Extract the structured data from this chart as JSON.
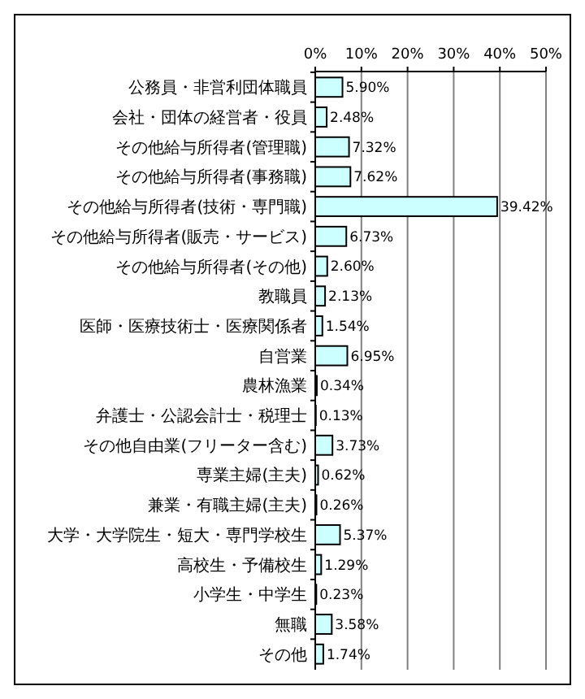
{
  "chart_data": {
    "type": "bar",
    "orientation": "horizontal",
    "grid": "x",
    "categories": [
      "公務員・非営利団体職員",
      "会社・団体の経営者・役員",
      "その他給与所得者(管理職)",
      "その他給与所得者(事務職)",
      "その他給与所得者(技術・専門職)",
      "その他給与所得者(販売・サービス)",
      "その他給与所得者(その他)",
      "教職員",
      "医師・医療技術士・医療関係者",
      "自営業",
      "農林漁業",
      "弁護士・公認会計士・税理士",
      "その他自由業(フリーター含む)",
      "専業主婦(主夫)",
      "兼業・有職主婦(主夫)",
      "大学・大学院生・短大・専門学校生",
      "高校生・予備校生",
      "小学生・中学生",
      "無職",
      "その他"
    ],
    "values": [
      5.9,
      2.48,
      7.32,
      7.62,
      39.42,
      6.73,
      2.6,
      2.13,
      1.54,
      6.95,
      0.34,
      0.13,
      3.73,
      0.62,
      0.26,
      5.37,
      1.29,
      0.23,
      3.58,
      1.74
    ],
    "value_labels": [
      "5.90%",
      "2.48%",
      "7.32%",
      "7.62%",
      "39.42%",
      "6.73%",
      "2.60%",
      "2.13%",
      "1.54%",
      "6.95%",
      "0.34%",
      "0.13%",
      "3.73%",
      "0.62%",
      "0.26%",
      "5.37%",
      "1.29%",
      "0.23%",
      "3.58%",
      "1.74%"
    ],
    "color": "#ccffff",
    "xlim": [
      0,
      50
    ],
    "xticks": [
      {
        "value": 0,
        "label": "0%"
      },
      {
        "value": 10,
        "label": "10%"
      },
      {
        "value": 20,
        "label": "20%"
      },
      {
        "value": 30,
        "label": "30%"
      },
      {
        "value": 40,
        "label": "40%"
      },
      {
        "value": 50,
        "label": "50%"
      }
    ]
  }
}
